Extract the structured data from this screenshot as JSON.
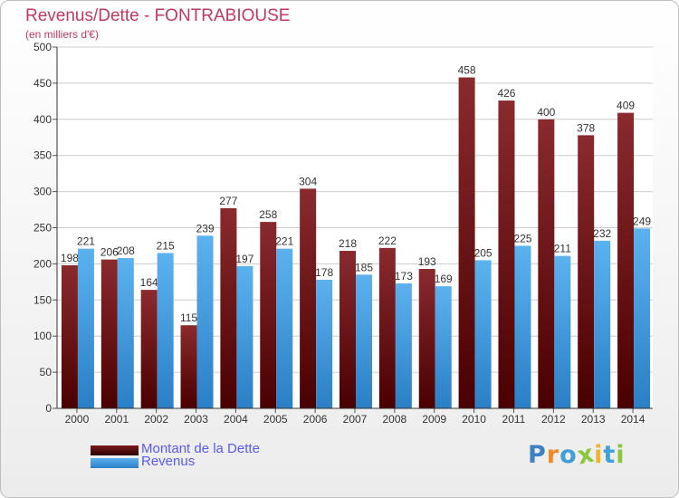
{
  "chart_data": {
    "type": "bar",
    "title": "Revenus/Dette - FONTRABIOUSE",
    "subtitle": "(en milliers d'€)",
    "categories": [
      "2000",
      "2001",
      "2002",
      "2003",
      "2004",
      "2005",
      "2006",
      "2007",
      "2008",
      "2009",
      "2010",
      "2011",
      "2012",
      "2013",
      "2014"
    ],
    "series": [
      {
        "name": "Montant de la Dette",
        "color": "#7a1a1d",
        "values": [
          198,
          206,
          164,
          115,
          277,
          258,
          304,
          218,
          222,
          193,
          458,
          426,
          400,
          378,
          409
        ]
      },
      {
        "name": "Revenus",
        "color": "#4aa3e8",
        "values": [
          221,
          208,
          215,
          239,
          197,
          221,
          178,
          185,
          173,
          169,
          205,
          225,
          211,
          232,
          249
        ]
      }
    ],
    "ylim": [
      0,
      500
    ],
    "yticks": [
      0,
      50,
      100,
      150,
      200,
      250,
      300,
      350,
      400,
      450,
      500
    ],
    "grid": true,
    "legend": "bottom-left"
  },
  "logo": {
    "letters": [
      {
        "ch": "P",
        "color": "#3f7fc4"
      },
      {
        "ch": "r",
        "color": "#f08a24"
      },
      {
        "ch": "o",
        "color": "#3f9fd6"
      },
      {
        "ch": "x",
        "color": "#8cc63f"
      },
      {
        "ch": "i",
        "color": "#f0b429"
      },
      {
        "ch": "t",
        "color": "#3f9fd6"
      },
      {
        "ch": "i",
        "color": "#8cc63f"
      }
    ]
  }
}
